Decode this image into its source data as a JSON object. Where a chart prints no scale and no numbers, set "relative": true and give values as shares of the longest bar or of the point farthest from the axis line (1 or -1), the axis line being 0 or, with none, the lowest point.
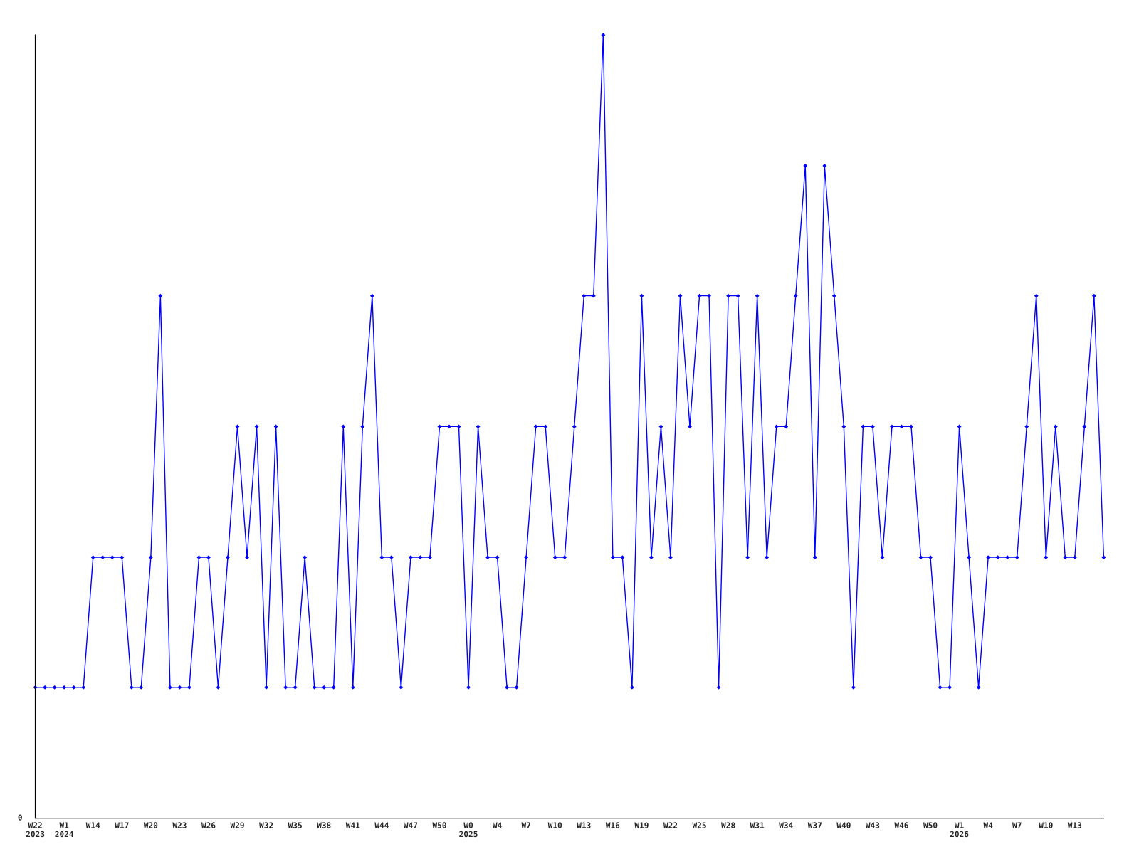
{
  "chart_data": {
    "type": "line",
    "relative": true,
    "categories": [
      "W22\n2023",
      null,
      null,
      "W1\n2024",
      null,
      null,
      "W14",
      null,
      null,
      "W17",
      null,
      null,
      "W20",
      null,
      null,
      "W23",
      null,
      null,
      "W26",
      null,
      null,
      "W29",
      null,
      null,
      "W32",
      null,
      null,
      "W35",
      null,
      null,
      "W38",
      null,
      null,
      "W41",
      null,
      null,
      "W44",
      null,
      null,
      "W47",
      null,
      null,
      "W50",
      null,
      null,
      "W0\n2025",
      null,
      null,
      "W4",
      null,
      null,
      "W7",
      null,
      null,
      "W10",
      null,
      null,
      "W13",
      null,
      null,
      "W16",
      null,
      null,
      "W19",
      null,
      null,
      "W22",
      null,
      null,
      "W25",
      null,
      null,
      "W28",
      null,
      null,
      "W31",
      null,
      null,
      "W34",
      null,
      null,
      "W37",
      null,
      null,
      "W40",
      null,
      null,
      "W43",
      null,
      null,
      "W46",
      null,
      null,
      "W50",
      null,
      null,
      "W1\n2026",
      null,
      null,
      "W4",
      null,
      null,
      "W7",
      null,
      null,
      "W10",
      null,
      null,
      "W13",
      null,
      null,
      null
    ],
    "series": [
      {
        "color": "#0000ff",
        "values": [
          0.167,
          0.167,
          0.167,
          0.167,
          0.167,
          0.167,
          0.333,
          0.333,
          0.333,
          0.333,
          0.167,
          0.167,
          0.333,
          0.667,
          0.167,
          0.167,
          0.167,
          0.333,
          0.333,
          0.167,
          0.333,
          0.5,
          0.333,
          0.5,
          0.167,
          0.5,
          0.167,
          0.167,
          0.333,
          0.167,
          0.167,
          0.167,
          0.5,
          0.167,
          0.5,
          0.667,
          0.333,
          0.333,
          0.167,
          0.333,
          0.333,
          0.333,
          0.5,
          0.5,
          0.5,
          0.167,
          0.5,
          0.333,
          0.333,
          0.167,
          0.167,
          0.333,
          0.5,
          0.5,
          0.333,
          0.333,
          0.5,
          0.667,
          0.667,
          1,
          0.333,
          0.333,
          0.167,
          0.667,
          0.333,
          0.5,
          0.333,
          0.667,
          0.5,
          0.667,
          0.667,
          0.167,
          0.667,
          0.667,
          0.333,
          0.667,
          0.333,
          0.5,
          0.5,
          0.667,
          0.833,
          0.333,
          0.833,
          0.667,
          0.5,
          0.167,
          0.5,
          0.5,
          0.333,
          0.5,
          0.5,
          0.5,
          0.333,
          0.333,
          0.167,
          0.167,
          0.5,
          0.333,
          0.167,
          0.333,
          0.333,
          0.333,
          0.333,
          0.5,
          0.667,
          0.333,
          0.5,
          0.333,
          0.333,
          0.5,
          0.667,
          0.333
        ]
      }
    ],
    "marker": "diamond",
    "line_style": "solid",
    "grid": false,
    "legend": false,
    "annotations": [
      "0"
    ]
  }
}
